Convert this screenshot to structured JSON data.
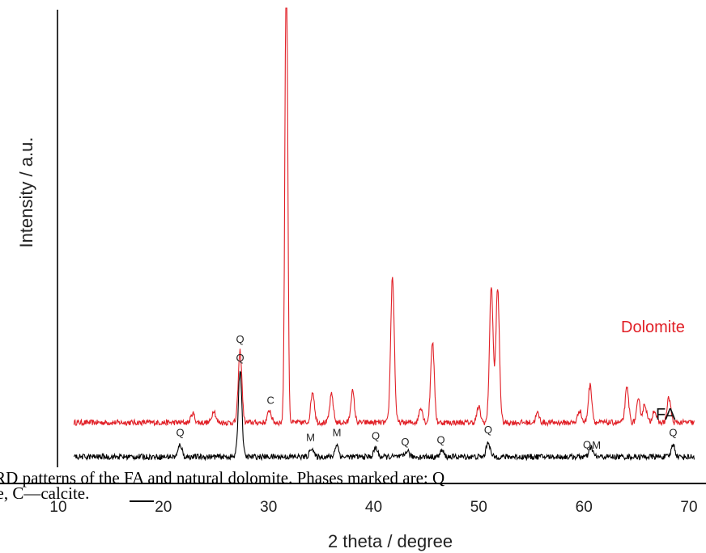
{
  "caption": {
    "line1": "XRD patterns of the FA and natural dolomite. Phases marked are: Q",
    "line2": "lite, C—calcite."
  },
  "chart_data": {
    "type": "line",
    "xlabel": "2 theta / degree",
    "ylabel": "Intensity / a.u.",
    "xlim": [
      10,
      70
    ],
    "xticks": [
      "10",
      "20",
      "30",
      "40",
      "50",
      "60",
      "70"
    ],
    "grid": false,
    "series": [
      {
        "name": "Dolomite",
        "color": "#e11f26",
        "baseline": 0.11,
        "peaks": [
          {
            "x": 22.1,
            "h": 0.03
          },
          {
            "x": 24.1,
            "h": 0.04
          },
          {
            "x": 26.6,
            "h": 0.23
          },
          {
            "x": 29.4,
            "h": 0.04
          },
          {
            "x": 31.0,
            "h": 1.6
          },
          {
            "x": 33.5,
            "h": 0.1
          },
          {
            "x": 35.3,
            "h": 0.09
          },
          {
            "x": 37.3,
            "h": 0.1
          },
          {
            "x": 41.1,
            "h": 0.47
          },
          {
            "x": 43.8,
            "h": 0.05
          },
          {
            "x": 44.9,
            "h": 0.26
          },
          {
            "x": 49.3,
            "h": 0.05
          },
          {
            "x": 50.5,
            "h": 0.44
          },
          {
            "x": 51.1,
            "h": 0.43
          },
          {
            "x": 54.9,
            "h": 0.03
          },
          {
            "x": 58.9,
            "h": 0.04
          },
          {
            "x": 59.9,
            "h": 0.12
          },
          {
            "x": 63.4,
            "h": 0.11
          },
          {
            "x": 64.5,
            "h": 0.07
          },
          {
            "x": 65.1,
            "h": 0.06
          },
          {
            "x": 66.0,
            "h": 0.04
          },
          {
            "x": 67.4,
            "h": 0.08
          }
        ]
      },
      {
        "name": "FA",
        "color": "#000000",
        "baseline": 0.0,
        "peaks": [
          {
            "x": 20.9,
            "h": 0.04
          },
          {
            "x": 26.6,
            "h": 0.28
          },
          {
            "x": 33.4,
            "h": 0.03
          },
          {
            "x": 35.8,
            "h": 0.04
          },
          {
            "x": 39.5,
            "h": 0.03
          },
          {
            "x": 42.5,
            "h": 0.02
          },
          {
            "x": 45.8,
            "h": 0.02
          },
          {
            "x": 50.2,
            "h": 0.05
          },
          {
            "x": 60.0,
            "h": 0.03
          },
          {
            "x": 67.8,
            "h": 0.04
          }
        ]
      }
    ],
    "annotations": [
      {
        "text": "Q",
        "x": 26.6,
        "series": "Dolomite"
      },
      {
        "text": "C",
        "x": 29.5,
        "series": "Dolomite"
      },
      {
        "text": "Q",
        "x": 20.9,
        "series": "FA"
      },
      {
        "text": "Q",
        "x": 26.6,
        "series": "FA"
      },
      {
        "text": "M",
        "x": 33.3,
        "series": "FA"
      },
      {
        "text": "M",
        "x": 35.8,
        "series": "FA"
      },
      {
        "text": "Q",
        "x": 39.5,
        "series": "FA"
      },
      {
        "text": "Q",
        "x": 42.3,
        "series": "FA"
      },
      {
        "text": "Q",
        "x": 45.7,
        "series": "FA"
      },
      {
        "text": "Q",
        "x": 50.2,
        "series": "FA"
      },
      {
        "text": "Q",
        "x": 59.6,
        "series": "FA"
      },
      {
        "text": "M",
        "x": 60.5,
        "series": "FA"
      },
      {
        "text": "Q",
        "x": 67.8,
        "series": "FA"
      }
    ]
  }
}
